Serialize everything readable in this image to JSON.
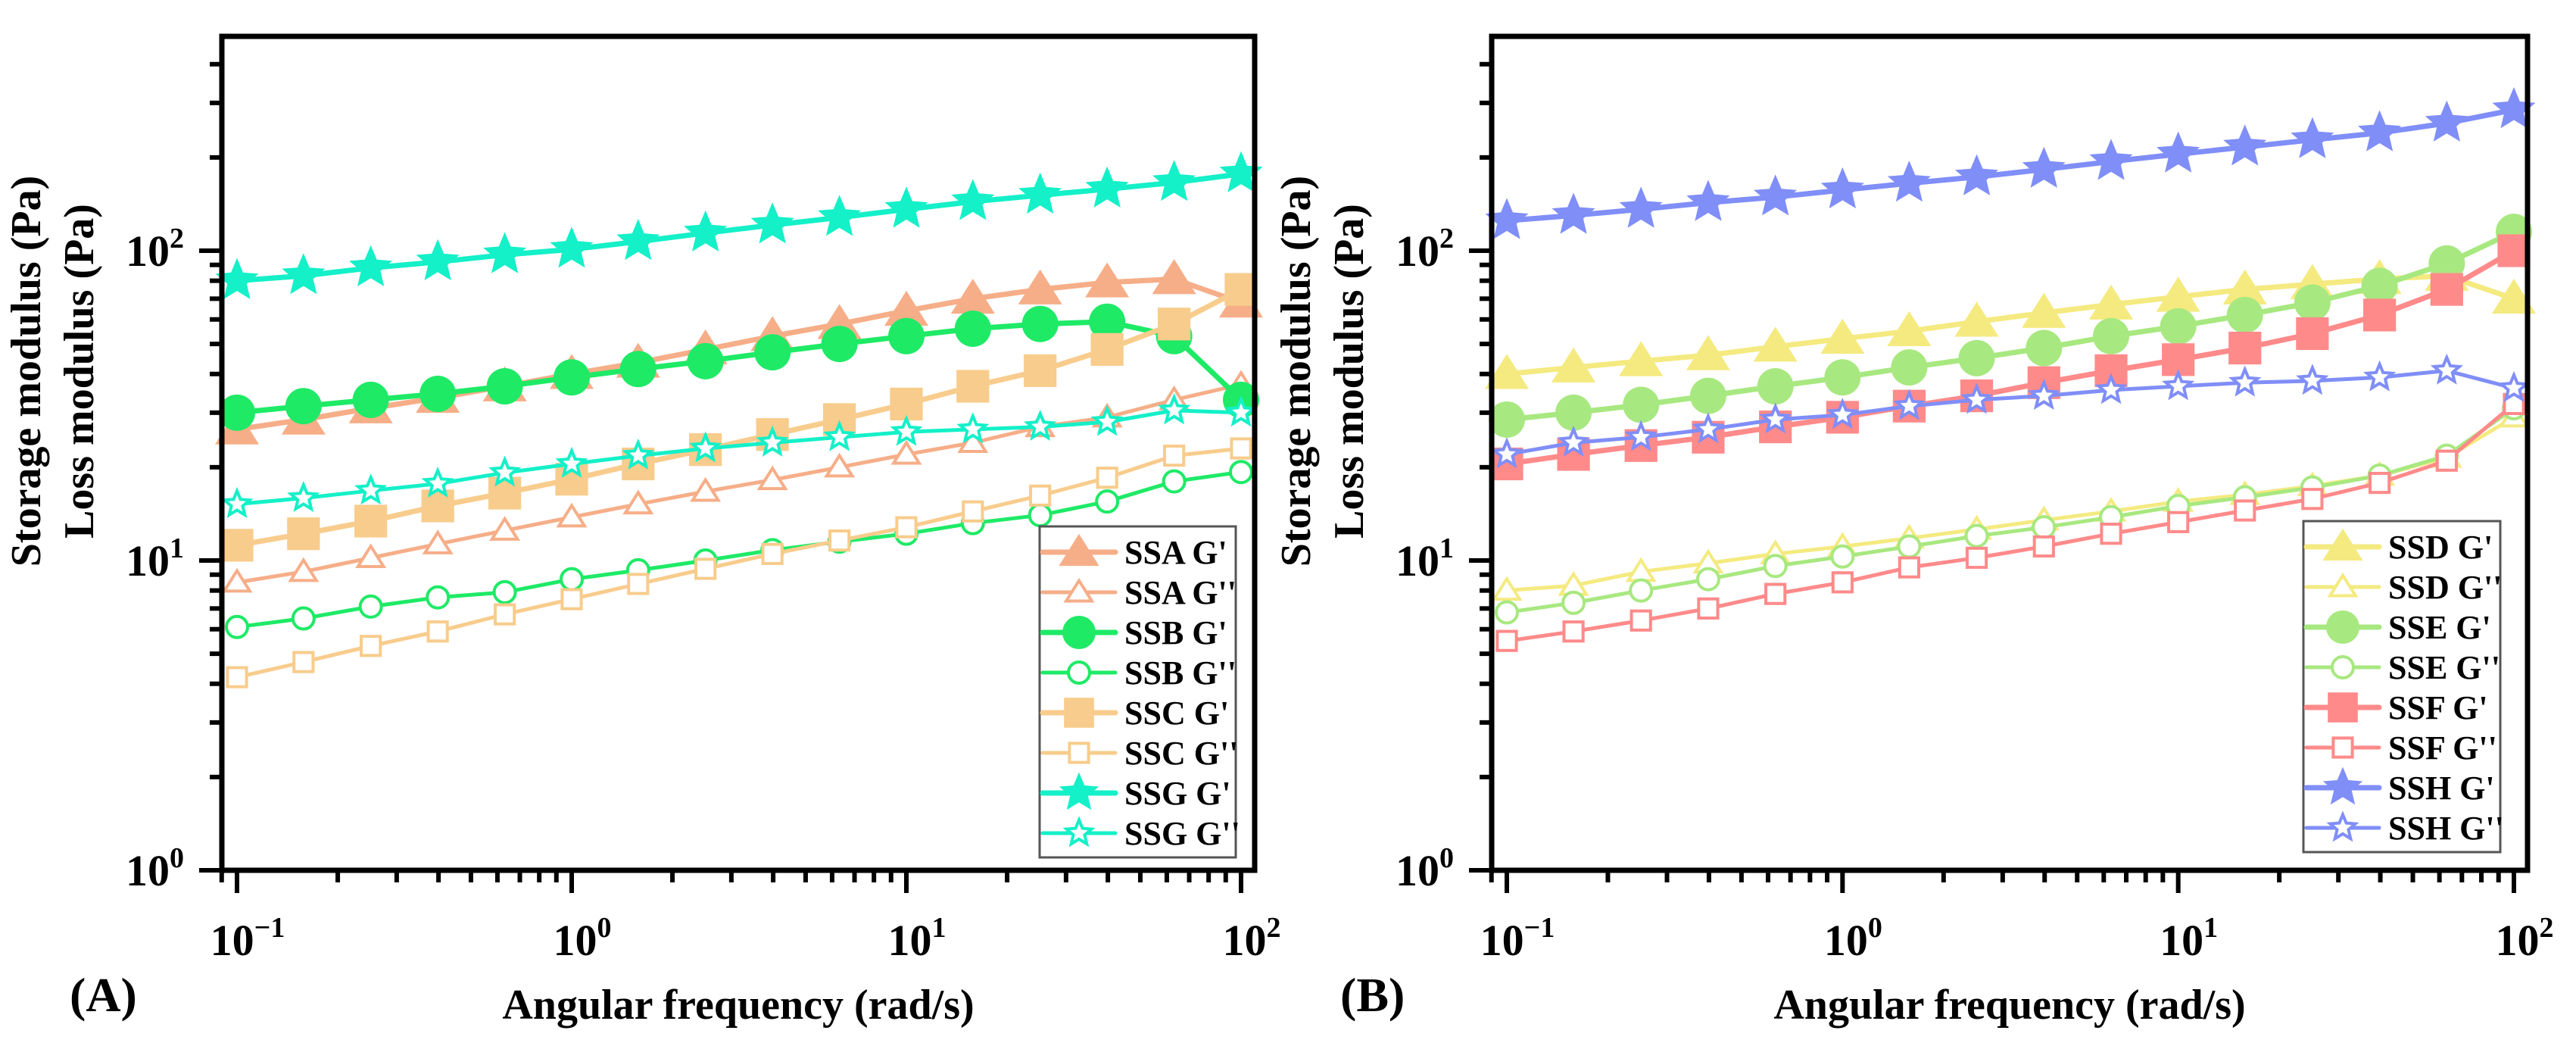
{
  "chart_data": [
    {
      "panel_label": "(A)",
      "type": "line",
      "xscale": "log",
      "yscale": "log",
      "xlabel": "Angular frequency (rad/s)",
      "ylabel_lines": [
        "Storage modulus (Pa)",
        "Loss modulus (Pa)"
      ],
      "xlim": [
        0.09,
        110
      ],
      "ylim": [
        1,
        492
      ],
      "xticks": [
        {
          "base": "10",
          "exp": "−1",
          "value": 0.1
        },
        {
          "base": "10",
          "exp": "0",
          "value": 1
        },
        {
          "base": "10",
          "exp": "1",
          "value": 10
        },
        {
          "base": "10",
          "exp": "2",
          "value": 100
        }
      ],
      "yticks": [
        {
          "base": "10",
          "exp": "0",
          "value": 1
        },
        {
          "base": "10",
          "exp": "1",
          "value": 10
        },
        {
          "base": "10",
          "exp": "2",
          "value": 100
        }
      ],
      "legend_position": "bottom-right",
      "x": [
        0.1,
        0.158,
        0.251,
        0.398,
        0.631,
        1,
        1.58,
        2.51,
        3.98,
        6.31,
        10,
        15.8,
        25.1,
        39.8,
        63.1,
        100
      ],
      "series": [
        {
          "name": "SSA G'",
          "color": "#f6ae88",
          "marker": "triangle",
          "filled": true,
          "values": [
            26.5,
            28.5,
            31,
            33.5,
            36.5,
            40,
            43.5,
            48,
            53,
            58,
            64,
            70,
            75,
            79,
            81,
            68
          ]
        },
        {
          "name": "SSA G''",
          "color": "#f6ae88",
          "marker": "triangle",
          "filled": false,
          "values": [
            8.5,
            9.2,
            10.2,
            11.3,
            12.5,
            13.8,
            15.2,
            16.7,
            18.2,
            20,
            22,
            24,
            27,
            29,
            33,
            37
          ]
        },
        {
          "name": "SSB G'",
          "color": "#1eea66",
          "marker": "circle",
          "filled": true,
          "values": [
            30,
            31.5,
            33,
            34.5,
            36.5,
            39,
            41.5,
            44,
            47,
            50,
            53,
            56,
            58,
            59,
            53,
            33
          ]
        },
        {
          "name": "SSB G''",
          "color": "#1eea66",
          "marker": "circle",
          "filled": false,
          "values": [
            6.1,
            6.5,
            7.1,
            7.6,
            7.9,
            8.7,
            9.3,
            10,
            10.8,
            11.5,
            12.2,
            13.2,
            14,
            15.5,
            18,
            19.3
          ]
        },
        {
          "name": "SSC G'",
          "color": "#f8cc8c",
          "marker": "square",
          "filled": true,
          "values": [
            11.2,
            12.2,
            13.4,
            15,
            16.5,
            18.3,
            20.5,
            22.8,
            25.5,
            28.5,
            32,
            36.5,
            41,
            48,
            58,
            75
          ]
        },
        {
          "name": "SSC G''",
          "color": "#f8cc8c",
          "marker": "square",
          "filled": false,
          "values": [
            4.2,
            4.7,
            5.3,
            5.9,
            6.7,
            7.5,
            8.4,
            9.4,
            10.5,
            11.6,
            12.8,
            14.4,
            16.2,
            18.5,
            21.8,
            23
          ]
        },
        {
          "name": "SSG G'",
          "color": "#14f0c8",
          "marker": "star",
          "filled": true,
          "values": [
            80,
            83,
            88,
            92,
            97,
            101,
            107,
            114,
            121,
            128,
            136,
            144,
            151,
            158,
            166,
            177
          ]
        },
        {
          "name": "SSG G''",
          "color": "#14f0c8",
          "marker": "star",
          "filled": false,
          "values": [
            15.2,
            15.9,
            16.8,
            17.7,
            19.2,
            20.5,
            21.8,
            23,
            24,
            25,
            26,
            26.5,
            27,
            28,
            30.5,
            30
          ]
        }
      ]
    },
    {
      "panel_label": "(B)",
      "type": "line",
      "xscale": "log",
      "yscale": "log",
      "xlabel": "Angular frequency (rad/s)",
      "ylabel_lines": [
        "Storage modulus (Pa)",
        "Loss modulus (Pa)"
      ],
      "xlim": [
        0.09,
        110
      ],
      "ylim": [
        1,
        492
      ],
      "xticks": [
        {
          "base": "10",
          "exp": "−1",
          "value": 0.1
        },
        {
          "base": "10",
          "exp": "0",
          "value": 1
        },
        {
          "base": "10",
          "exp": "1",
          "value": 10
        },
        {
          "base": "10",
          "exp": "2",
          "value": 100
        }
      ],
      "yticks": [
        {
          "base": "10",
          "exp": "0",
          "value": 1
        },
        {
          "base": "10",
          "exp": "1",
          "value": 10
        },
        {
          "base": "10",
          "exp": "2",
          "value": 100
        }
      ],
      "legend_position": "bottom-right",
      "x": [
        0.1,
        0.158,
        0.251,
        0.398,
        0.631,
        1,
        1.58,
        2.51,
        3.98,
        6.31,
        10,
        15.8,
        25.1,
        39.8,
        63.1,
        100
      ],
      "series": [
        {
          "name": "SSD G'",
          "color": "#f4ea80",
          "marker": "triangle",
          "filled": true,
          "values": [
            40,
            42,
            44,
            46,
            49,
            52,
            55,
            59,
            63,
            67,
            71,
            75,
            78,
            81,
            83,
            70
          ]
        },
        {
          "name": "SSD G''",
          "color": "#f4ea80",
          "marker": "triangle",
          "filled": false,
          "values": [
            8,
            8.3,
            9.2,
            9.8,
            10.5,
            11.1,
            11.8,
            12.6,
            13.5,
            14.4,
            15.5,
            16.3,
            17.4,
            18.8,
            21.5,
            29
          ]
        },
        {
          "name": "SSE G'",
          "color": "#a8e880",
          "marker": "circle",
          "filled": true,
          "values": [
            28.5,
            30,
            31.8,
            34,
            36.5,
            39,
            42,
            45,
            48.5,
            53,
            57,
            62,
            68,
            77,
            91,
            115
          ]
        },
        {
          "name": "SSE G''",
          "color": "#a8e880",
          "marker": "circle",
          "filled": false,
          "values": [
            6.8,
            7.3,
            8,
            8.7,
            9.6,
            10.3,
            11.1,
            12,
            12.8,
            13.8,
            15,
            16,
            17.2,
            18.8,
            21.8,
            31
          ]
        },
        {
          "name": "SSF G'",
          "color": "#ff8a8a",
          "marker": "square",
          "filled": true,
          "values": [
            20.5,
            22,
            23.5,
            25,
            27,
            29,
            31.5,
            34,
            37.5,
            41,
            44.5,
            48.5,
            54,
            62,
            75,
            100
          ]
        },
        {
          "name": "SSF G''",
          "color": "#ff8a8a",
          "marker": "square",
          "filled": false,
          "values": [
            5.5,
            5.9,
            6.4,
            7,
            7.8,
            8.5,
            9.5,
            10.2,
            11.1,
            12.2,
            13.3,
            14.5,
            15.8,
            17.8,
            21,
            32
          ]
        },
        {
          "name": "SSH G'",
          "color": "#808ef8",
          "marker": "star",
          "filled": true,
          "values": [
            125,
            130,
            136,
            143,
            149,
            157,
            165,
            173,
            183,
            194,
            205,
            216,
            228,
            240,
            258,
            285
          ]
        },
        {
          "name": "SSH G''",
          "color": "#808ef8",
          "marker": "star",
          "filled": false,
          "values": [
            22,
            24,
            25,
            26.5,
            28.5,
            29.5,
            31.5,
            33,
            34,
            35.5,
            36.5,
            37.5,
            38,
            39,
            41,
            36
          ]
        }
      ]
    }
  ]
}
